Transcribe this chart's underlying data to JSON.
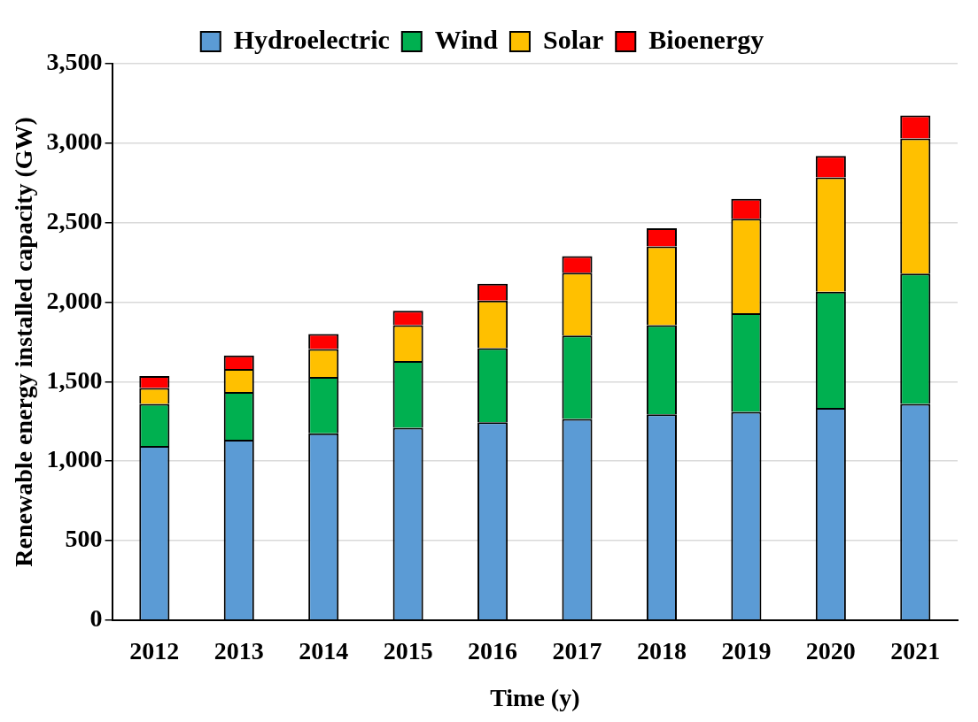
{
  "chart_data": {
    "type": "bar",
    "stacked": true,
    "xlabel": "Time (y)",
    "ylabel": "Renewable energy installed capacity (GW)",
    "categories": [
      "2012",
      "2013",
      "2014",
      "2015",
      "2016",
      "2017",
      "2018",
      "2019",
      "2020",
      "2021"
    ],
    "series": [
      {
        "name": "Hydroelectric",
        "color": "#5b9bd5",
        "values": [
          1095,
          1135,
          1175,
          1210,
          1245,
          1265,
          1295,
          1310,
          1335,
          1360
        ]
      },
      {
        "name": "Wind",
        "color": "#00b050",
        "values": [
          265,
          300,
          355,
          420,
          465,
          525,
          560,
          620,
          730,
          820
        ]
      },
      {
        "name": "Solar",
        "color": "#ffc000",
        "values": [
          100,
          145,
          175,
          225,
          300,
          395,
          495,
          595,
          720,
          850
        ]
      },
      {
        "name": "Bioenergy",
        "color": "#ff0000",
        "values": [
          75,
          85,
          95,
          90,
          105,
          105,
          115,
          125,
          135,
          145
        ]
      }
    ],
    "ylim": [
      0,
      3500
    ],
    "yticks": [
      {
        "value": 0,
        "label": "0"
      },
      {
        "value": 500,
        "label": "500"
      },
      {
        "value": 1000,
        "label": "1,000"
      },
      {
        "value": 1500,
        "label": "1,500"
      },
      {
        "value": 2000,
        "label": "2,000"
      },
      {
        "value": 2500,
        "label": "2,500"
      },
      {
        "value": 3000,
        "label": "3,000"
      },
      {
        "value": 3500,
        "label": "3,500"
      }
    ],
    "grid": "y",
    "legend": "top"
  }
}
